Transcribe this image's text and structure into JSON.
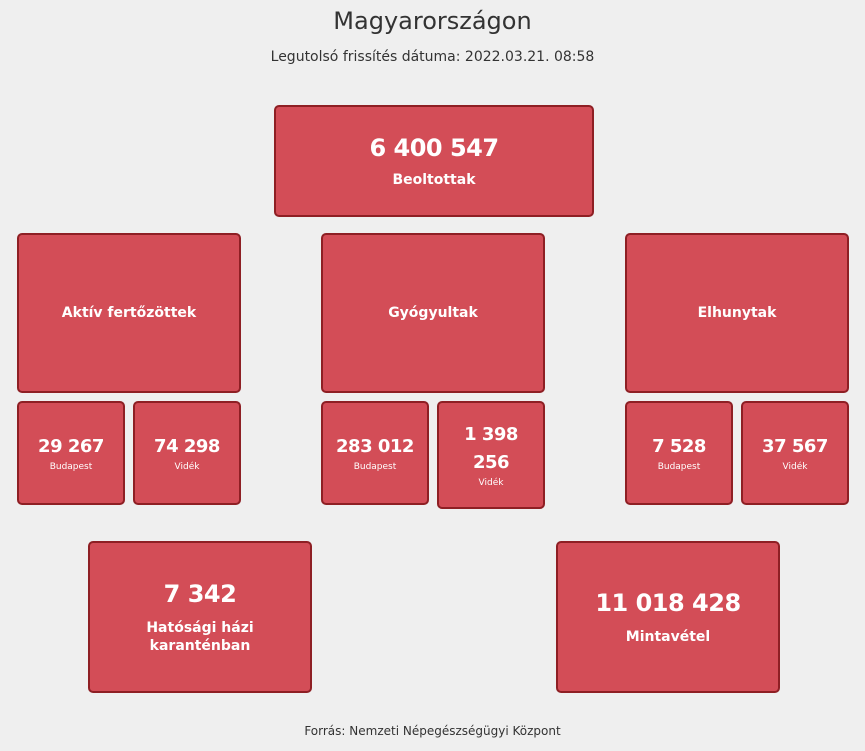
{
  "header": {
    "title": "Magyarországon",
    "updated": "Legutolsó frissítés dátuma: 2022.03.21. 08:58"
  },
  "vaccinated": {
    "value": "6 400 547",
    "label": "Beoltottak"
  },
  "active": {
    "label": "Aktív fertőzöttek",
    "budapest": {
      "value": "29 267",
      "label": "Budapest"
    },
    "videk": {
      "value": "74 298",
      "label": "Vidék"
    }
  },
  "recovered": {
    "label": "Gyógyultak",
    "budapest": {
      "value": "283 012",
      "label": "Budapest"
    },
    "videk": {
      "value": "1 398 256",
      "label": "Vidék"
    }
  },
  "deceased": {
    "label": "Elhunytak",
    "budapest": {
      "value": "7 528",
      "label": "Budapest"
    },
    "videk": {
      "value": "37 567",
      "label": "Vidék"
    }
  },
  "quarantine": {
    "value": "7 342",
    "label": "Hatósági házi karanténban"
  },
  "samples": {
    "value": "11 018 428",
    "label": "Mintavétel"
  },
  "footer": {
    "source": "Forrás: Nemzeti Népegészségügyi Központ"
  }
}
